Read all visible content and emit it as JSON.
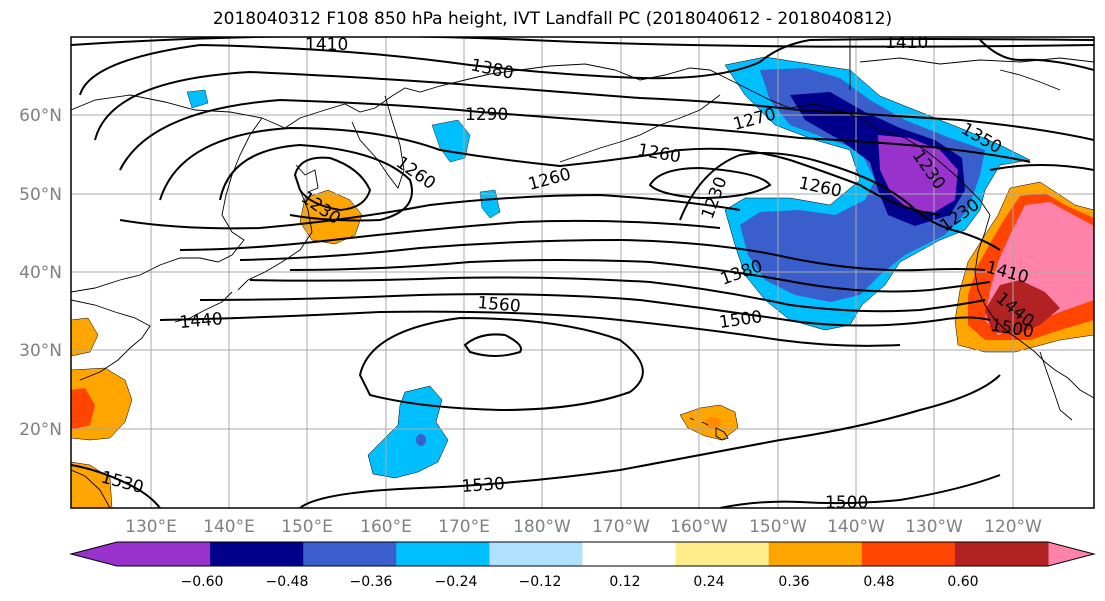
{
  "title": "2018040312 F108 850 hPa height, IVT Landfall PC (2018040612 - 2018040812)",
  "lat_labels": [
    "60°N",
    "50°N",
    "40°N",
    "30°N",
    "20°N"
  ],
  "lon_labels": [
    "130°E",
    "140°E",
    "150°E",
    "160°E",
    "170°E",
    "180°W",
    "170°W",
    "160°W",
    "150°W",
    "140°W",
    "130°W",
    "120°W"
  ],
  "contour_labels": [
    "1410",
    "1380",
    "1290",
    "1260",
    "1230",
    "1260",
    "1260",
    "1230",
    "1260",
    "1270",
    "1350",
    "1380",
    "1500",
    "1560",
    "1440",
    "1530",
    "1530",
    "1500",
    "1410",
    "1410",
    "1230",
    "1440",
    "1230",
    "1500"
  ],
  "colorbar": {
    "ticks": [
      "−0.60",
      "−0.48",
      "−0.36",
      "−0.24",
      "−0.12",
      "0.12",
      "0.24",
      "0.36",
      "0.48",
      "0.60"
    ],
    "colors": [
      "#9932cc",
      "#00008b",
      "#3a5fcd",
      "#00bfff",
      "#b0e2ff",
      "#ffffff",
      "#ffec8b",
      "#ffa500",
      "#ff4500",
      "#b22222",
      "#ff82ab"
    ]
  },
  "colors": {
    "grid": "#a8a8a8",
    "contour": "#000000",
    "axis_labels": "#808080"
  }
}
